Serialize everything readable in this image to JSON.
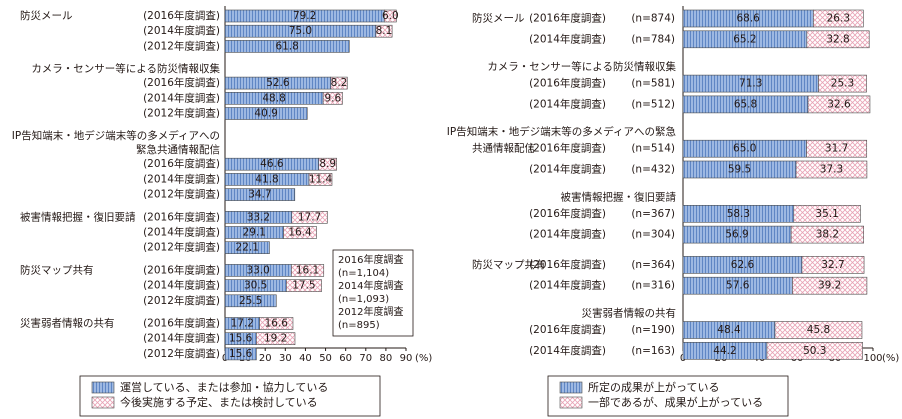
{
  "chart_data": [
    {
      "type": "bar",
      "stacked": true,
      "orientation": "horizontal",
      "unit": "(%)",
      "xlim": [
        0,
        90
      ],
      "xticks": [
        0,
        10,
        20,
        30,
        40,
        50,
        60,
        70,
        80,
        90
      ],
      "legend": "bottom",
      "legend_items": [
        "運営している、または参加・協力している",
        "今後実施する予定、または検討している"
      ],
      "note_lines": [
        "2016年度調査",
        "(n=1,104)",
        "2014年度調査",
        "(n=1,093)",
        "2012年度調査",
        "(n=895)"
      ],
      "groups": [
        {
          "title_lines": [
            "防災メール"
          ],
          "inline_title": true,
          "rows": [
            {
              "label": "(2016年度調査)",
              "values": [
                79.2,
                6.0
              ]
            },
            {
              "label": "(2014年度調査)",
              "values": [
                75.0,
                8.1
              ]
            },
            {
              "label": "(2012年度調査)",
              "values": [
                61.8
              ]
            }
          ]
        },
        {
          "title_lines": [
            "カメラ・センサー等による防災情報収集"
          ],
          "inline_title": false,
          "rows": [
            {
              "label": "(2016年度調査)",
              "values": [
                52.6,
                8.2
              ]
            },
            {
              "label": "(2014年度調査)",
              "values": [
                48.8,
                9.6
              ]
            },
            {
              "label": "(2012年度調査)",
              "values": [
                40.9
              ]
            }
          ]
        },
        {
          "title_lines": [
            "IP告知端末・地デジ端末等の多メディアへの",
            "緊急共通情報配信"
          ],
          "inline_title": false,
          "rows": [
            {
              "label": "(2016年度調査)",
              "values": [
                46.6,
                8.9
              ]
            },
            {
              "label": "(2014年度調査)",
              "values": [
                41.8,
                11.4
              ]
            },
            {
              "label": "(2012年度調査)",
              "values": [
                34.7
              ]
            }
          ]
        },
        {
          "title_lines": [
            "被害情報把握・復旧要請"
          ],
          "inline_title": true,
          "rows": [
            {
              "label": "(2016年度調査)",
              "values": [
                33.2,
                17.7
              ]
            },
            {
              "label": "(2014年度調査)",
              "values": [
                29.1,
                16.4
              ]
            },
            {
              "label": "(2012年度調査)",
              "values": [
                22.1
              ]
            }
          ]
        },
        {
          "title_lines": [
            "防災マップ共有"
          ],
          "inline_title": true,
          "rows": [
            {
              "label": "(2016年度調査)",
              "values": [
                33.0,
                16.1
              ]
            },
            {
              "label": "(2014年度調査)",
              "values": [
                30.5,
                17.5
              ]
            },
            {
              "label": "(2012年度調査)",
              "values": [
                25.5
              ]
            }
          ]
        },
        {
          "title_lines": [
            "災害弱者情報の共有"
          ],
          "inline_title": true,
          "rows": [
            {
              "label": "(2016年度調査)",
              "values": [
                17.2,
                16.6
              ]
            },
            {
              "label": "(2014年度調査)",
              "values": [
                15.6,
                19.2
              ]
            },
            {
              "label": "(2012年度調査)",
              "values": [
                15.6
              ]
            }
          ]
        }
      ]
    },
    {
      "type": "bar",
      "stacked": true,
      "orientation": "horizontal",
      "unit": "(%)",
      "xlim": [
        0,
        100
      ],
      "xticks": [
        0,
        20,
        40,
        60,
        80,
        100
      ],
      "legend": "bottom",
      "legend_items": [
        "所定の成果が上がっている",
        "一部であるが、成果が上がっている"
      ],
      "groups": [
        {
          "title_lines": [
            "防災メール"
          ],
          "inline_title": true,
          "rows": [
            {
              "label": "(2016年度調査)",
              "n": "(n=874)",
              "values": [
                68.6,
                26.3
              ]
            },
            {
              "label": "(2014年度調査)",
              "n": "(n=784)",
              "values": [
                65.2,
                32.8
              ]
            }
          ]
        },
        {
          "title_lines": [
            "カメラ・センサー等による防災情報収集"
          ],
          "inline_title": false,
          "rows": [
            {
              "label": "(2016年度調査)",
              "n": "(n=581)",
              "values": [
                71.3,
                25.3
              ]
            },
            {
              "label": "(2014年度調査)",
              "n": "(n=512)",
              "values": [
                65.8,
                32.6
              ]
            }
          ]
        },
        {
          "title_lines": [
            "IP告知端末・地デジ端末等の多メディアへの緊急",
            "共通情報配信"
          ],
          "inline_title": true,
          "rows": [
            {
              "label": "(2016年度調査)",
              "n": "(n=514)",
              "values": [
                65.0,
                31.7
              ]
            },
            {
              "label": "(2014年度調査)",
              "n": "(n=432)",
              "values": [
                59.5,
                37.3
              ]
            }
          ]
        },
        {
          "title_lines": [
            "被害情報把握・復旧要請"
          ],
          "inline_title": false,
          "rows": [
            {
              "label": "(2016年度調査)",
              "n": "(n=367)",
              "values": [
                58.3,
                35.1
              ]
            },
            {
              "label": "(2014年度調査)",
              "n": "(n=304)",
              "values": [
                56.9,
                38.2
              ]
            }
          ]
        },
        {
          "title_lines": [
            "防災マップ共有"
          ],
          "inline_title": true,
          "rows": [
            {
              "label": "(2016年度調査)",
              "n": "(n=364)",
              "values": [
                62.6,
                32.7
              ]
            },
            {
              "label": "(2014年度調査)",
              "n": "(n=316)",
              "values": [
                57.6,
                39.2
              ]
            }
          ]
        },
        {
          "title_lines": [
            "災害弱者情報の共有"
          ],
          "inline_title": false,
          "rows": [
            {
              "label": "(2016年度調査)",
              "n": "(n=190)",
              "values": [
                48.4,
                45.8
              ]
            },
            {
              "label": "(2014年度調査)",
              "n": "(n=163)",
              "values": [
                44.2,
                50.3
              ]
            }
          ]
        }
      ]
    }
  ],
  "colors": {
    "series1_fill": "#9db8e2",
    "series1_stripe": "#5f86c4",
    "series2_fill": "#ffffff",
    "series2_pattern": "#e8a3b5",
    "text": "#231815",
    "axis": "#231815"
  }
}
